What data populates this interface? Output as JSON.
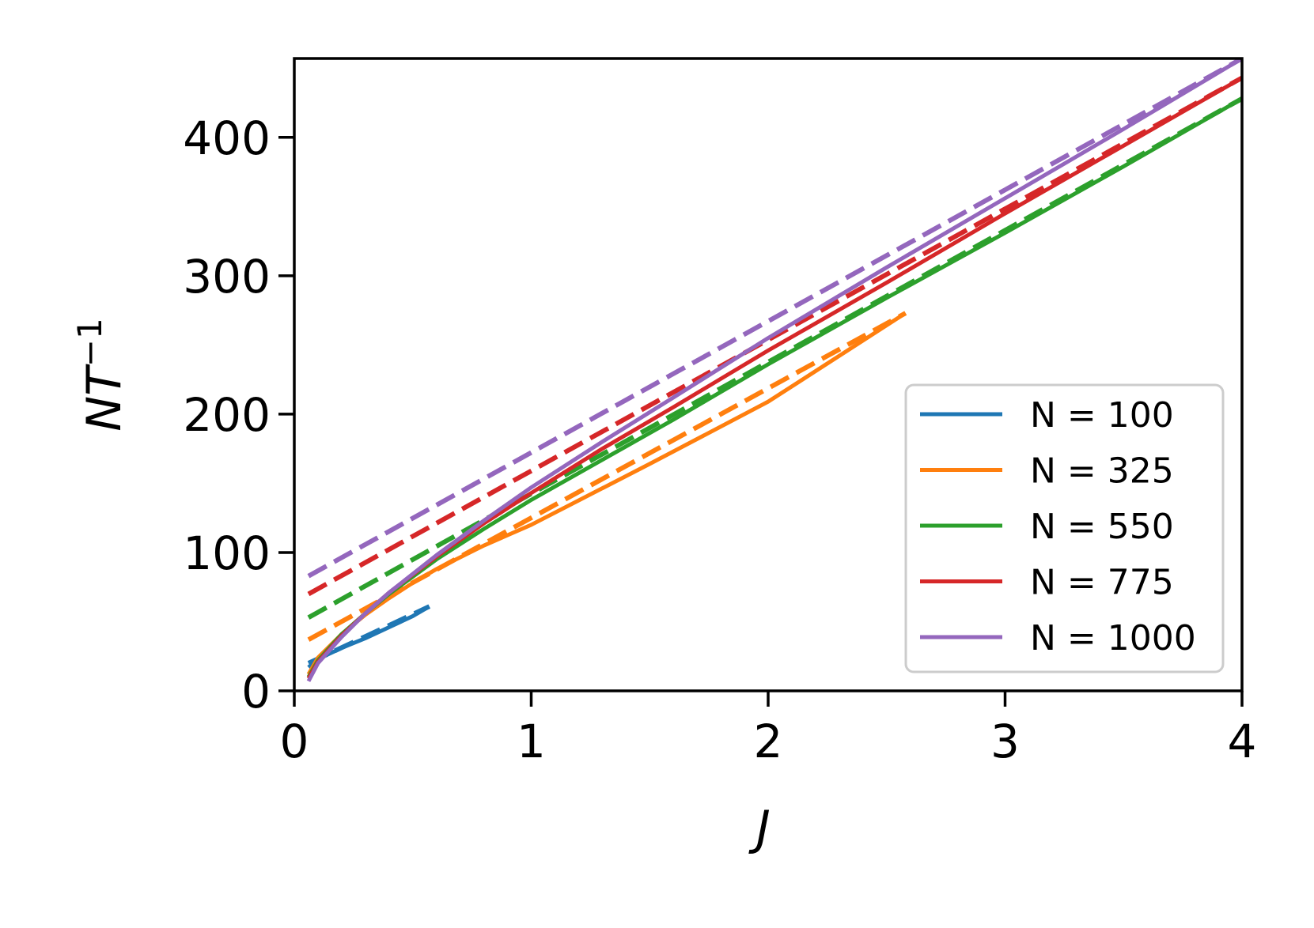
{
  "chart_data": {
    "type": "line",
    "xlabel": "J",
    "ylabel": {
      "base": "NT",
      "sup": "−1"
    },
    "xlim": [
      0,
      4
    ],
    "ylim": [
      0,
      457
    ],
    "xticks": [
      0,
      1,
      2,
      3,
      4
    ],
    "xtick_labels": [
      "0",
      "1",
      "2",
      "3",
      "4"
    ],
    "yticks": [
      0,
      100,
      200,
      300,
      400
    ],
    "ytick_labels": [
      "0",
      "100",
      "200",
      "300",
      "400"
    ],
    "grid": false,
    "legend_position": "lower-right",
    "series": [
      {
        "name": "N = 100",
        "color": "#1f77b4",
        "solid": {
          "x": [
            0.06,
            0.1,
            0.2,
            0.3,
            0.4,
            0.5,
            0.57
          ],
          "y": [
            17,
            23,
            31,
            38,
            46,
            54,
            61
          ]
        },
        "dashed": {
          "x": [
            0.06,
            0.57
          ],
          "y": [
            20,
            61
          ]
        }
      },
      {
        "name": "N = 325",
        "color": "#ff7f0e",
        "solid": {
          "x": [
            0.06,
            0.1,
            0.2,
            0.3,
            0.4,
            0.5,
            0.6,
            0.8,
            1.0,
            1.5,
            2.0,
            2.58
          ],
          "y": [
            12,
            24,
            41,
            55,
            67,
            78,
            88,
            105,
            120,
            164,
            209,
            273
          ]
        },
        "dashed": {
          "x": [
            0.06,
            2.58
          ],
          "y": [
            37,
            273
          ]
        }
      },
      {
        "name": "N = 550",
        "color": "#2ca02c",
        "solid": {
          "x": [
            0.06,
            0.1,
            0.2,
            0.3,
            0.4,
            0.6,
            0.8,
            1.0,
            1.3,
            1.6,
            2.0,
            2.5,
            3.0,
            3.5,
            4.0
          ],
          "y": [
            10,
            22,
            41,
            56,
            70,
            95,
            117,
            138,
            167,
            196,
            236,
            284,
            331,
            379,
            428
          ]
        },
        "dashed": {
          "x": [
            0.06,
            4.0
          ],
          "y": [
            53,
            428
          ]
        }
      },
      {
        "name": "N = 775",
        "color": "#d62728",
        "solid": {
          "x": [
            0.06,
            0.1,
            0.2,
            0.3,
            0.4,
            0.6,
            0.8,
            1.0,
            1.3,
            1.6,
            2.0,
            2.5,
            3.0,
            3.5,
            4.0
          ],
          "y": [
            9,
            21,
            40,
            56,
            71,
            97,
            121,
            143,
            175,
            205,
            246,
            295,
            345,
            394,
            443
          ]
        },
        "dashed": {
          "x": [
            0.06,
            4.0
          ],
          "y": [
            70,
            443
          ]
        }
      },
      {
        "name": "N = 1000",
        "color": "#9467bd",
        "solid": {
          "x": [
            0.06,
            0.1,
            0.2,
            0.3,
            0.4,
            0.6,
            0.8,
            1.0,
            1.3,
            1.6,
            2.0,
            2.5,
            3.0,
            3.5,
            4.0
          ],
          "y": [
            7,
            20,
            39,
            56,
            71,
            98,
            123,
            147,
            180,
            212,
            255,
            306,
            356,
            406,
            457
          ]
        },
        "dashed": {
          "x": [
            0.06,
            4.0
          ],
          "y": [
            83,
            457
          ]
        }
      }
    ]
  }
}
